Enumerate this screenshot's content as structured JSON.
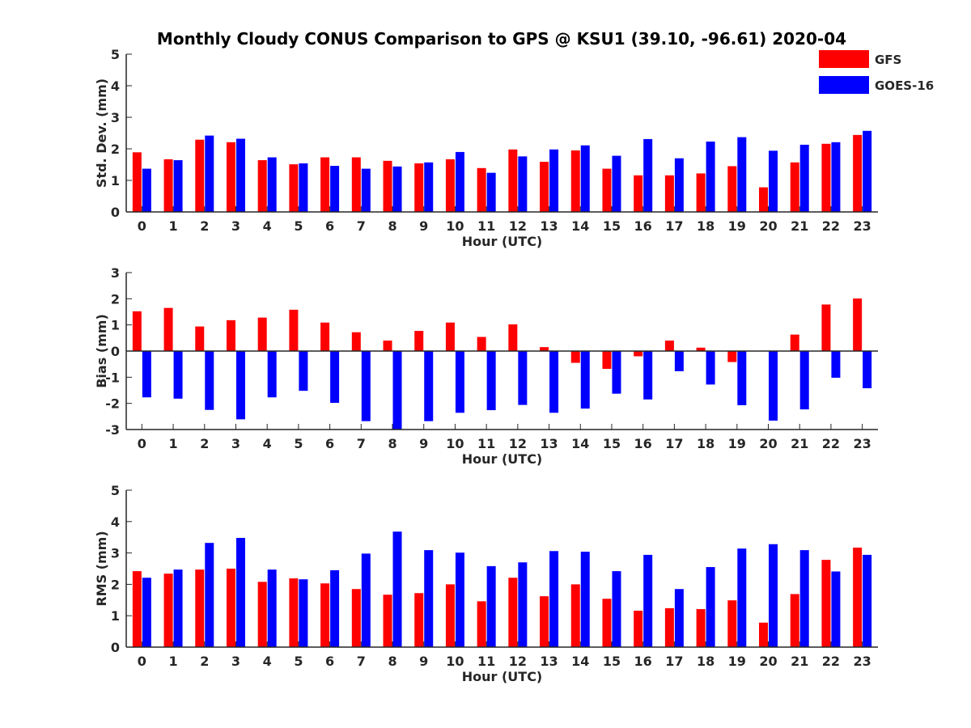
{
  "title": "Monthly Cloudy CONUS Comparison to GPS @ KSU1 (39.10, -96.61) 2020-04",
  "legend": {
    "position": "top-right",
    "items": [
      "GFS",
      "GOES-16"
    ]
  },
  "colors": {
    "GFS": "#ff0000",
    "GOES-16": "#0000ff",
    "axis": "#262626"
  },
  "chart_data": [
    {
      "type": "bar",
      "title": "Monthly Cloudy CONUS Comparison to GPS @ KSU1 (39.10, -96.61) 2020-04",
      "xlabel": "Hour (UTC)",
      "ylabel": "Std. Dev. (mm)",
      "ylim": [
        0,
        5
      ],
      "yticks": [
        0,
        1,
        2,
        3,
        4,
        5
      ],
      "categories": [
        "0",
        "1",
        "2",
        "3",
        "4",
        "5",
        "6",
        "7",
        "8",
        "9",
        "10",
        "11",
        "12",
        "13",
        "14",
        "15",
        "16",
        "17",
        "18",
        "19",
        "20",
        "21",
        "22",
        "23"
      ],
      "series": [
        {
          "name": "GFS",
          "values": [
            1.89,
            1.67,
            2.29,
            2.21,
            1.64,
            1.51,
            1.73,
            1.73,
            1.62,
            1.54,
            1.67,
            1.39,
            1.98,
            1.59,
            1.95,
            1.37,
            1.16,
            1.16,
            1.22,
            1.45,
            0.78,
            1.57,
            2.16,
            2.44
          ]
        },
        {
          "name": "GOES-16",
          "values": [
            1.37,
            1.64,
            2.42,
            2.32,
            1.73,
            1.54,
            1.46,
            1.37,
            1.44,
            1.57,
            1.9,
            1.24,
            1.76,
            1.98,
            2.11,
            1.78,
            2.31,
            1.7,
            2.23,
            2.37,
            1.94,
            2.13,
            2.21,
            2.57
          ]
        }
      ]
    },
    {
      "type": "bar",
      "xlabel": "Hour (UTC)",
      "ylabel": "Bias (mm)",
      "ylim": [
        -3,
        3
      ],
      "yticks": [
        -3,
        -2,
        -1,
        0,
        1,
        2,
        3
      ],
      "categories": [
        "0",
        "1",
        "2",
        "3",
        "4",
        "5",
        "6",
        "7",
        "8",
        "9",
        "10",
        "11",
        "12",
        "13",
        "14",
        "15",
        "16",
        "17",
        "18",
        "19",
        "20",
        "21",
        "22",
        "23"
      ],
      "series": [
        {
          "name": "GFS",
          "values": [
            1.52,
            1.65,
            0.94,
            1.18,
            1.28,
            1.58,
            1.09,
            0.72,
            0.4,
            0.77,
            1.09,
            0.54,
            1.02,
            0.15,
            -0.45,
            -0.68,
            -0.2,
            0.4,
            0.13,
            -0.42,
            0.0,
            0.63,
            1.78,
            2.01
          ]
        },
        {
          "name": "GOES-16",
          "values": [
            -1.77,
            -1.82,
            -2.25,
            -2.61,
            -1.77,
            -1.52,
            -1.98,
            -2.68,
            -3.0,
            -2.68,
            -2.36,
            -2.26,
            -2.06,
            -2.36,
            -2.2,
            -1.63,
            -1.85,
            -0.77,
            -1.28,
            -2.07,
            -2.66,
            -2.23,
            -1.02,
            -1.42
          ]
        }
      ]
    },
    {
      "type": "bar",
      "xlabel": "Hour (UTC)",
      "ylabel": "RMS (mm)",
      "ylim": [
        0,
        5
      ],
      "yticks": [
        0,
        1,
        2,
        3,
        4,
        5
      ],
      "categories": [
        "0",
        "1",
        "2",
        "3",
        "4",
        "5",
        "6",
        "7",
        "8",
        "9",
        "10",
        "11",
        "12",
        "13",
        "14",
        "15",
        "16",
        "17",
        "18",
        "19",
        "20",
        "21",
        "22",
        "23"
      ],
      "series": [
        {
          "name": "GFS",
          "values": [
            2.42,
            2.34,
            2.47,
            2.5,
            2.08,
            2.19,
            2.03,
            1.85,
            1.67,
            1.72,
            2.0,
            1.46,
            2.21,
            1.62,
            2.0,
            1.54,
            1.16,
            1.24,
            1.21,
            1.49,
            0.78,
            1.69,
            2.78,
            3.17
          ]
        },
        {
          "name": "GOES-16",
          "values": [
            2.21,
            2.47,
            3.32,
            3.48,
            2.47,
            2.16,
            2.45,
            2.98,
            3.68,
            3.09,
            3.01,
            2.58,
            2.7,
            3.06,
            3.04,
            2.42,
            2.94,
            1.85,
            2.55,
            3.14,
            3.28,
            3.09,
            2.41,
            2.94
          ]
        }
      ]
    }
  ]
}
